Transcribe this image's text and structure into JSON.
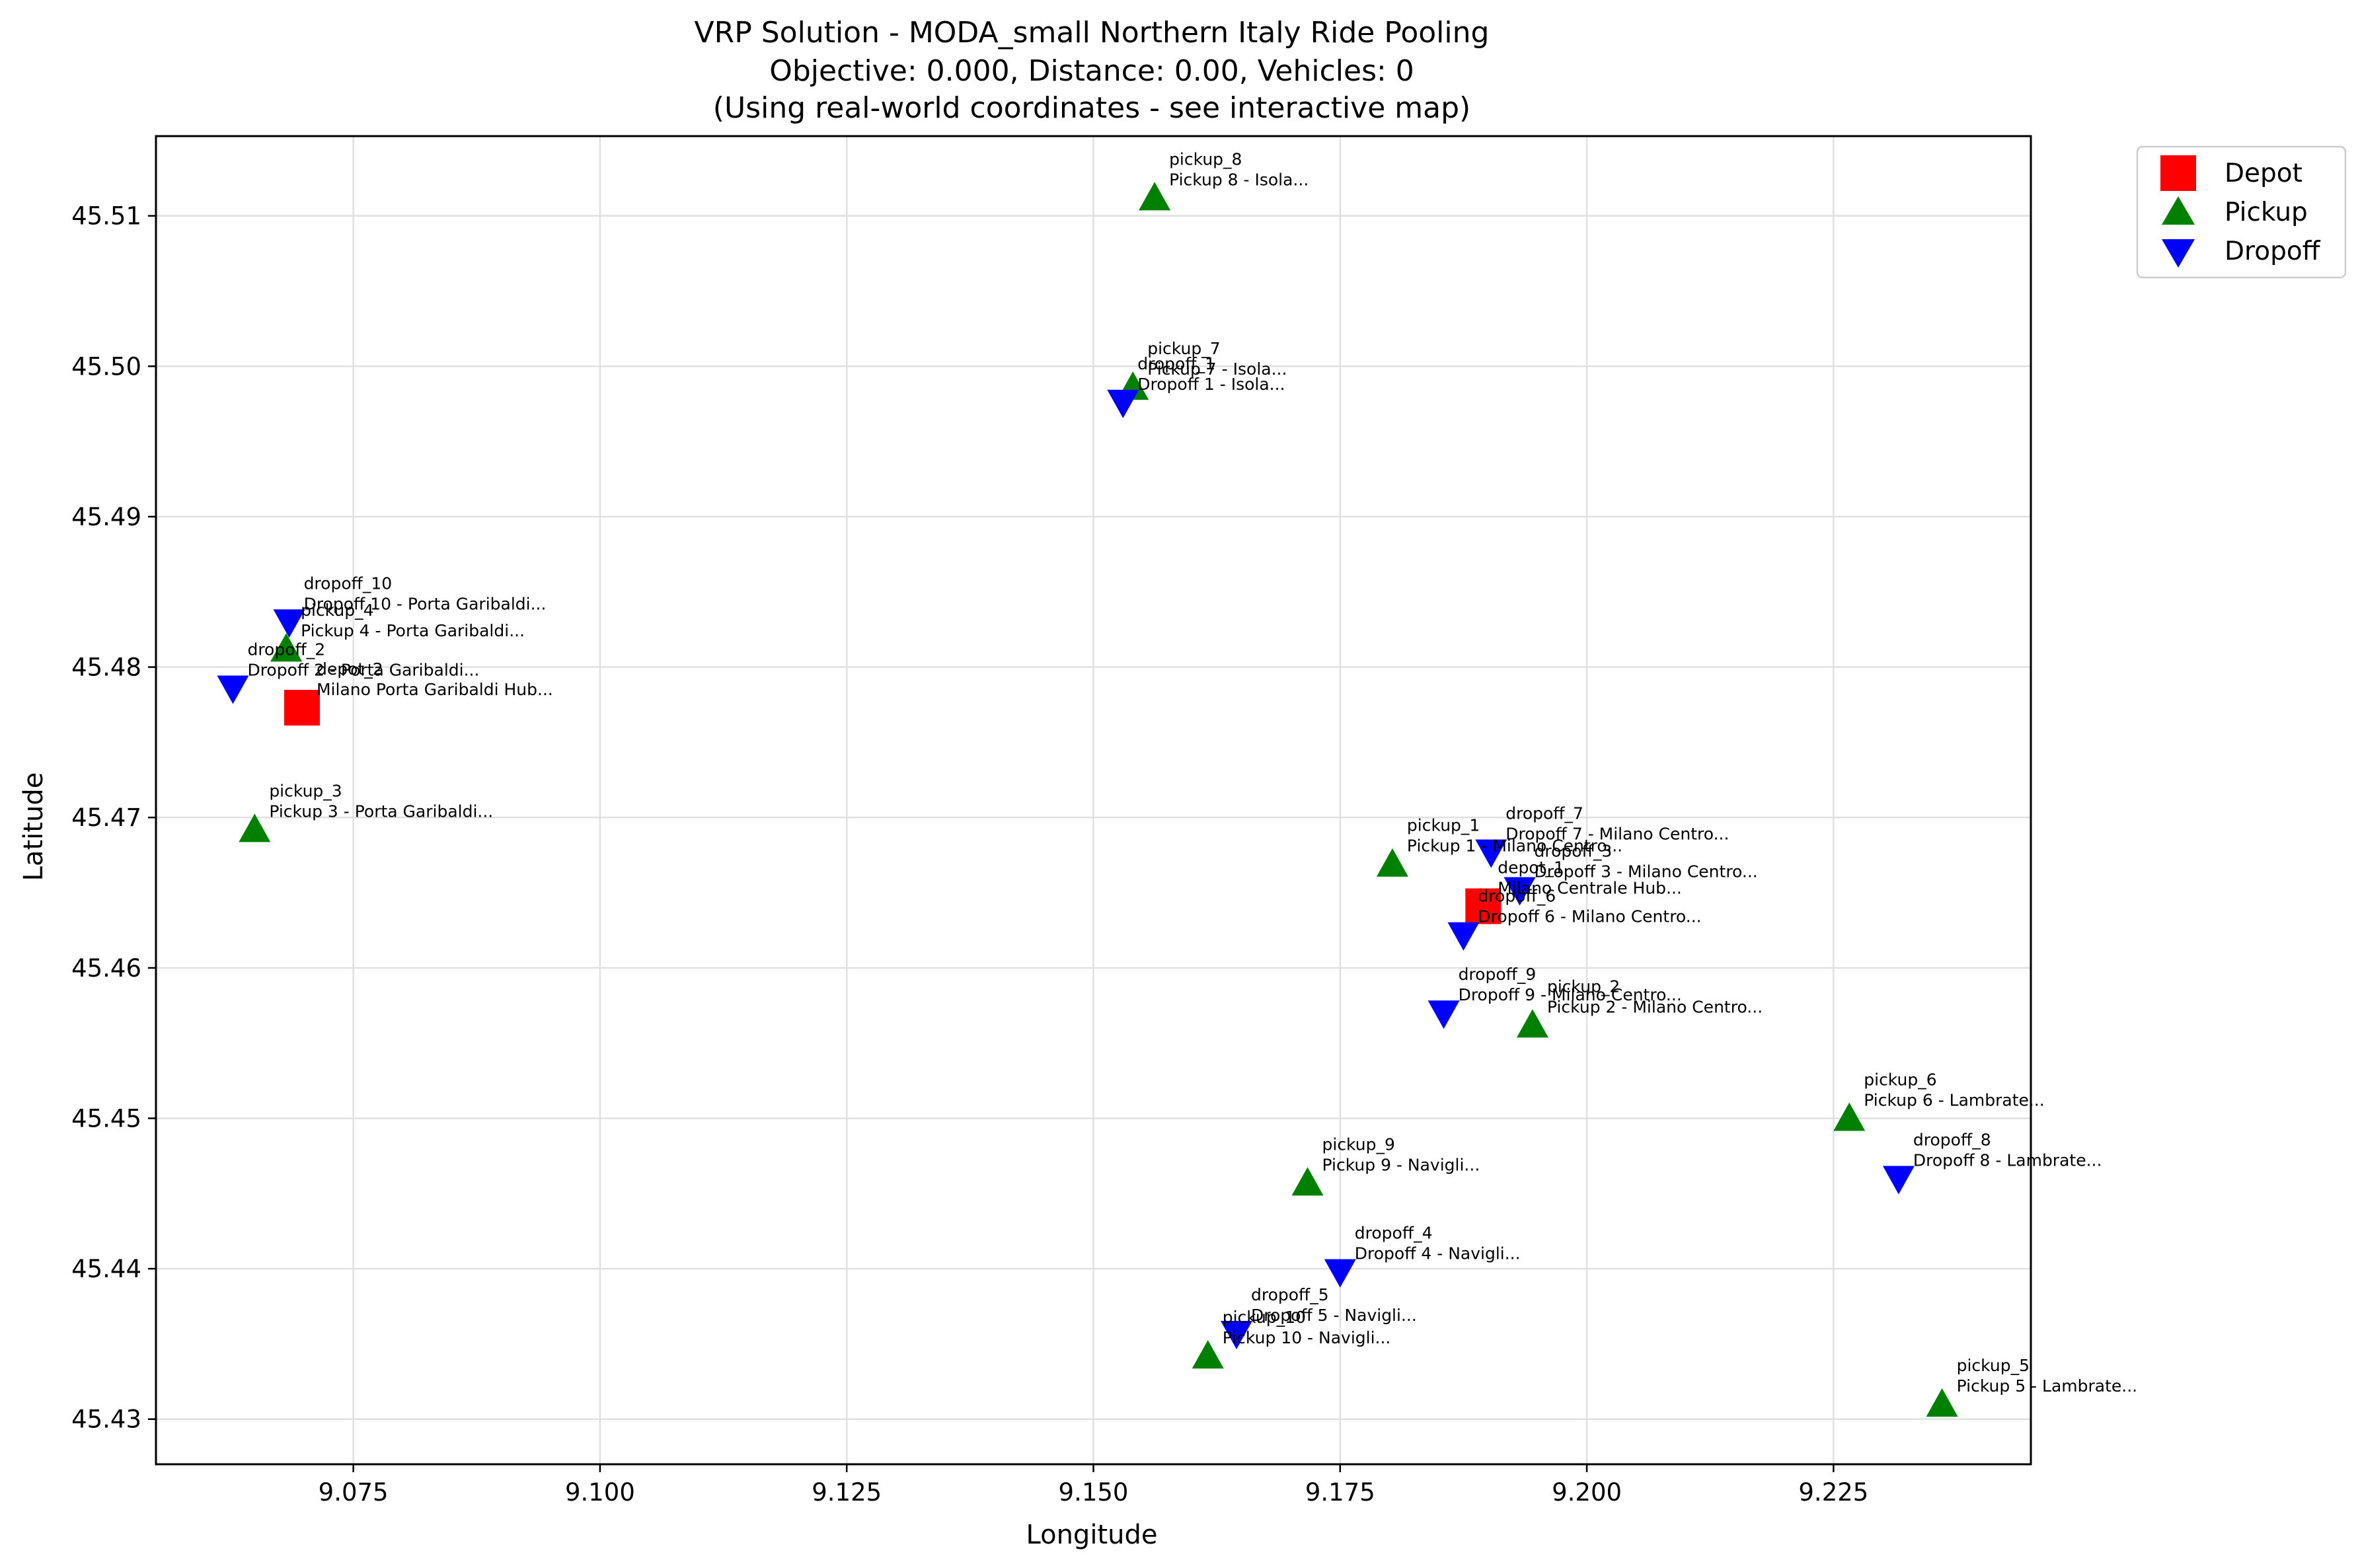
{
  "chart_data": {
    "type": "scatter",
    "title_lines": [
      "VRP Solution - MODA_small Northern Italy Ride Pooling",
      "Objective: 0.000, Distance: 0.00, Vehicles: 0",
      "(Using real-world coordinates - see interactive map)"
    ],
    "xlabel": "Longitude",
    "ylabel": "Latitude",
    "xlim": [
      9.055,
      9.245
    ],
    "ylim": [
      45.427,
      45.5153
    ],
    "xticks": [
      9.075,
      9.1,
      9.125,
      9.15,
      9.175,
      9.2,
      9.225
    ],
    "xtick_labels": [
      "9.075",
      "9.100",
      "9.125",
      "9.150",
      "9.175",
      "9.200",
      "9.225"
    ],
    "yticks": [
      45.43,
      45.44,
      45.45,
      45.46,
      45.47,
      45.48,
      45.49,
      45.5,
      45.51
    ],
    "ytick_labels": [
      "45.43",
      "45.44",
      "45.45",
      "45.46",
      "45.47",
      "45.48",
      "45.49",
      "45.50",
      "45.51"
    ],
    "grid": true,
    "legend_position": "outside-top-right",
    "legend": [
      {
        "label": "Depot",
        "marker": "square",
        "color": "#ff0000"
      },
      {
        "label": "Pickup",
        "marker": "triangle-up",
        "color": "#008000"
      },
      {
        "label": "Dropoff",
        "marker": "triangle-down",
        "color": "#0000ff"
      }
    ],
    "points": [
      {
        "kind": "depot",
        "x": 9.0698,
        "y": 45.4773,
        "id": "depot_2",
        "desc": "Milano Porta Garibaldi Hub..."
      },
      {
        "kind": "depot",
        "x": 9.1895,
        "y": 45.4641,
        "id": "depot_1",
        "desc": "Milano Centrale Hub..."
      },
      {
        "kind": "pickup",
        "x": 9.1803,
        "y": 45.4669,
        "id": "pickup_1",
        "desc": "Pickup 1 - Milano Centro..."
      },
      {
        "kind": "pickup",
        "x": 9.1945,
        "y": 45.4562,
        "id": "pickup_2",
        "desc": "Pickup 2 - Milano Centro..."
      },
      {
        "kind": "pickup",
        "x": 9.065,
        "y": 45.4692,
        "id": "pickup_3",
        "desc": "Pickup 3 - Porta Garibaldi..."
      },
      {
        "kind": "pickup",
        "x": 9.0682,
        "y": 45.4812,
        "id": "pickup_4",
        "desc": "Pickup 4 - Porta Garibaldi..."
      },
      {
        "kind": "pickup",
        "x": 9.236,
        "y": 45.431,
        "id": "pickup_5",
        "desc": "Pickup 5 - Lambrate..."
      },
      {
        "kind": "pickup",
        "x": 9.2266,
        "y": 45.45,
        "id": "pickup_6",
        "desc": "Pickup 6 - Lambrate..."
      },
      {
        "kind": "pickup",
        "x": 9.154,
        "y": 45.4986,
        "id": "pickup_7",
        "desc": "Pickup 7 - Isola..."
      },
      {
        "kind": "pickup",
        "x": 9.1562,
        "y": 45.5112,
        "id": "pickup_8",
        "desc": "Pickup 8 - Isola..."
      },
      {
        "kind": "pickup",
        "x": 9.1717,
        "y": 45.4457,
        "id": "pickup_9",
        "desc": "Pickup 9 - Navigli..."
      },
      {
        "kind": "pickup",
        "x": 9.1616,
        "y": 45.4342,
        "id": "pickup_10",
        "desc": "Pickup 10 - Navigli..."
      },
      {
        "kind": "dropoff",
        "x": 9.153,
        "y": 45.4976,
        "id": "dropoff_1",
        "desc": "Dropoff 1 - Isola..."
      },
      {
        "kind": "dropoff",
        "x": 9.0628,
        "y": 45.4786,
        "id": "dropoff_2",
        "desc": "Dropoff 2 - Porta Garibaldi..."
      },
      {
        "kind": "dropoff",
        "x": 9.1932,
        "y": 45.4652,
        "id": "dropoff_3",
        "desc": "Dropoff 3 - Milano Centro..."
      },
      {
        "kind": "dropoff",
        "x": 9.175,
        "y": 45.4398,
        "id": "dropoff_4",
        "desc": "Dropoff 4 - Navigli..."
      },
      {
        "kind": "dropoff",
        "x": 9.1645,
        "y": 45.4357,
        "id": "dropoff_5",
        "desc": "Dropoff 5 - Navigli..."
      },
      {
        "kind": "dropoff",
        "x": 9.1875,
        "y": 45.4622,
        "id": "dropoff_6",
        "desc": "Dropoff 6 - Milano Centro..."
      },
      {
        "kind": "dropoff",
        "x": 9.1903,
        "y": 45.4677,
        "id": "dropoff_7",
        "desc": "Dropoff 7 - Milano Centro..."
      },
      {
        "kind": "dropoff",
        "x": 9.2316,
        "y": 45.446,
        "id": "dropoff_8",
        "desc": "Dropoff 8 - Lambrate..."
      },
      {
        "kind": "dropoff",
        "x": 9.1855,
        "y": 45.457,
        "id": "dropoff_9",
        "desc": "Dropoff 9 - Milano Centro..."
      },
      {
        "kind": "dropoff",
        "x": 9.0685,
        "y": 45.483,
        "id": "dropoff_10",
        "desc": "Dropoff 10 - Porta Garibaldi..."
      }
    ]
  }
}
